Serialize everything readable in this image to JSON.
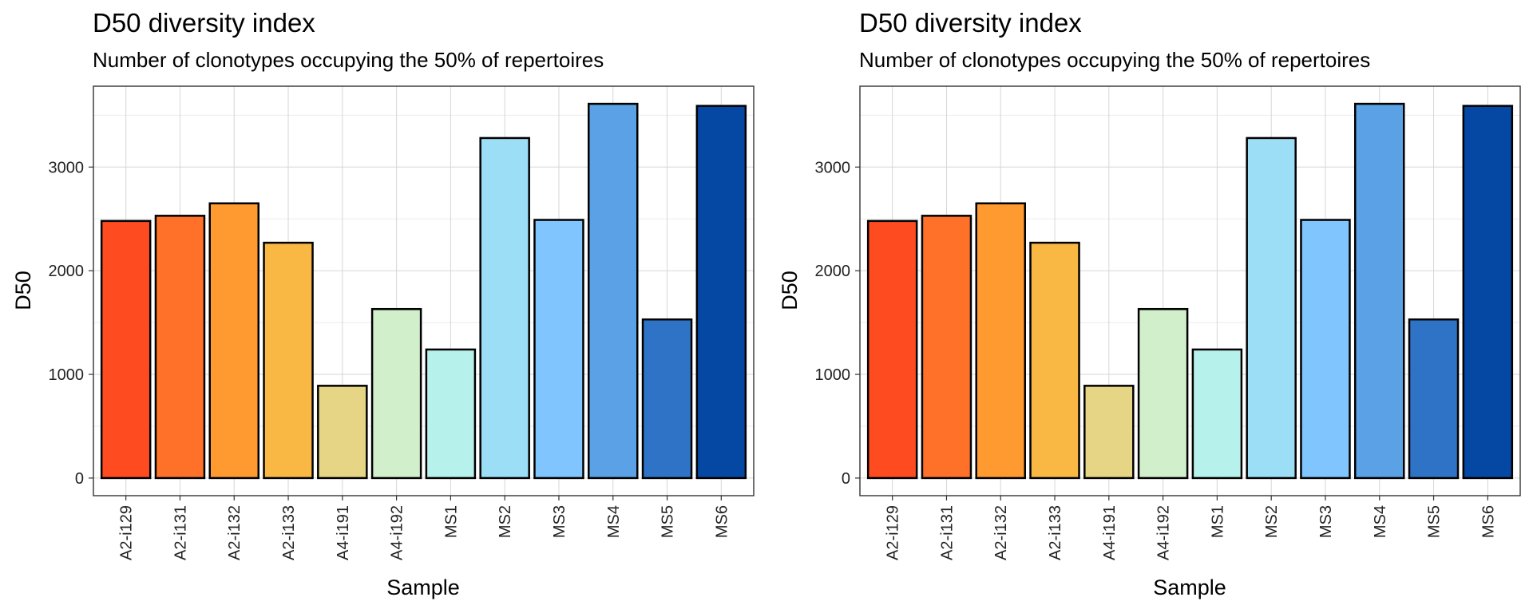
{
  "chart_data": [
    {
      "type": "bar",
      "title": "D50 diversity index",
      "subtitle": "Number of clonotypes occupying the 50% of repertoires",
      "xlabel": "Sample",
      "ylabel": "D50",
      "categories": [
        "A2-i129",
        "A2-i131",
        "A2-i132",
        "A2-i133",
        "A4-i191",
        "A4-i192",
        "MS1",
        "MS2",
        "MS3",
        "MS4",
        "MS5",
        "MS6"
      ],
      "values": [
        2480,
        2530,
        2650,
        2270,
        890,
        1630,
        1240,
        3280,
        2490,
        3610,
        1530,
        3590
      ],
      "colors": [
        "#FF4B20",
        "#FF7029",
        "#FF9A30",
        "#F8B843",
        "#E6D585",
        "#D2EFCC",
        "#B7F1EC",
        "#9DDEF7",
        "#80C5FE",
        "#5AA2E5",
        "#2F73C6",
        "#0448A4"
      ],
      "yticks": [
        0,
        1000,
        2000,
        3000
      ],
      "ylim": [
        -170,
        3780
      ],
      "grid": true,
      "legend": "none"
    },
    {
      "type": "bar",
      "title": "D50 diversity index",
      "subtitle": "Number of clonotypes occupying the 50% of repertoires",
      "xlabel": "Sample",
      "ylabel": "D50",
      "categories": [
        "A2-i129",
        "A2-i131",
        "A2-i132",
        "A2-i133",
        "A4-i191",
        "A4-i192",
        "MS1",
        "MS2",
        "MS3",
        "MS4",
        "MS5",
        "MS6"
      ],
      "values": [
        2480,
        2530,
        2650,
        2270,
        890,
        1630,
        1240,
        3280,
        2490,
        3610,
        1530,
        3590
      ],
      "colors": [
        "#FF4B20",
        "#FF7029",
        "#FF9A30",
        "#F8B843",
        "#E6D585",
        "#D2EFCC",
        "#B7F1EC",
        "#9DDEF7",
        "#80C5FE",
        "#5AA2E5",
        "#2F73C6",
        "#0448A4"
      ],
      "yticks": [
        0,
        1000,
        2000,
        3000
      ],
      "ylim": [
        -170,
        3780
      ],
      "grid": true,
      "legend": "none"
    }
  ]
}
